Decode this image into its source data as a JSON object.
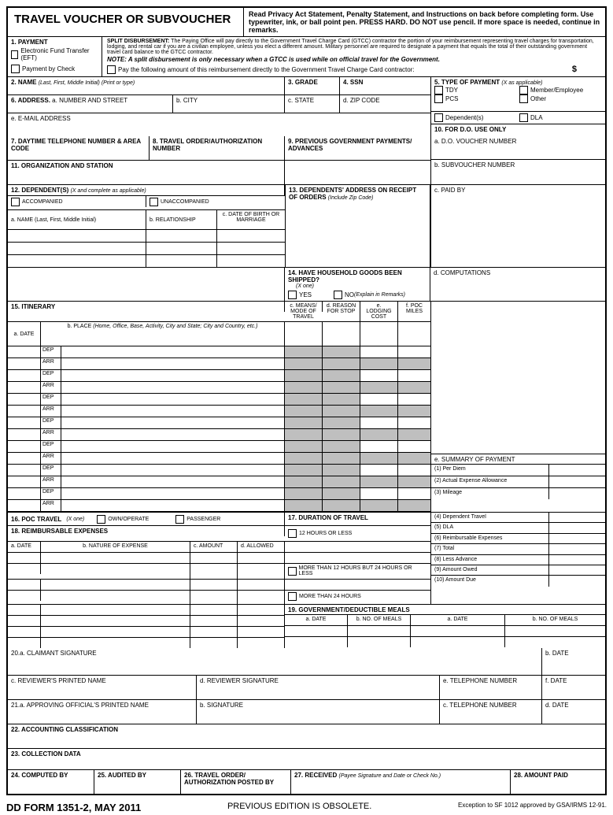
{
  "header": {
    "title": "TRAVEL VOUCHER OR SUBVOUCHER",
    "privacy": "Read Privacy Act Statement, Penalty Statement, and Instructions on back before completing form. Use typewriter, ink, or ball point pen. PRESS HARD. DO NOT use pencil. If more space is needed, continue in remarks."
  },
  "s1": {
    "label": "1. PAYMENT",
    "eft": "Electronic Fund Transfer (EFT)",
    "check": "Payment by Check",
    "split_hdr": "SPLIT DISBURSEMENT:",
    "split_txt": " The Paying Office will pay directly to the Government Travel Charge Card (GTCC) contractor the portion of your reimbursement representing travel charges for transportation, lodging, and rental car if you are a civilian employee, unless you elect a different amount. Military personnel are required to designate a payment that equals the total of their outstanding government travel card balance to the GTCC contractor.",
    "note": "NOTE: A split disbursement is only necessary when a GTCC is used while on official travel for the Government.",
    "pay_following": "Pay the following amount of this reimbursement directly to the Government Travel Charge Card contractor:",
    "dollar": "$"
  },
  "s2": {
    "label": "2. NAME",
    "hint": "(Last, First, Middle Initial) (Print or type)"
  },
  "s3": "3. GRADE",
  "s4": "4. SSN",
  "s5": {
    "label": "5. TYPE OF PAYMENT",
    "hint": "(X as applicable)",
    "tdy": "TDY",
    "member": "Member/Employee",
    "pcs": "PCS",
    "other": "Other",
    "dep": "Dependent(s)",
    "dla": "DLA"
  },
  "s6": {
    "label": "6. ADDRESS.",
    "a": "a. NUMBER AND STREET",
    "b": "b. CITY",
    "c": "c. STATE",
    "d": "d. ZIP CODE",
    "e": "e. E-MAIL ADDRESS"
  },
  "s7": "7. DAYTIME TELEPHONE NUMBER & AREA CODE",
  "s8": "8. TRAVEL ORDER/AUTHORIZATION NUMBER",
  "s9": "9. PREVIOUS GOVERNMENT PAYMENTS/ ADVANCES",
  "s10": {
    "label": "10. FOR D.O. USE ONLY",
    "a": "a. D.O. VOUCHER NUMBER",
    "b": "b. SUBVOUCHER NUMBER",
    "c": "c. PAID BY",
    "d": "d. COMPUTATIONS",
    "e": "e. SUMMARY OF PAYMENT",
    "lines": [
      "(1) Per Diem",
      "(2) Actual Expense Allowance",
      "(3) Mileage",
      "(4) Dependent Travel",
      "(5) DLA",
      "(6) Reimbursable Expenses",
      "(7) Total",
      "(8) Less Advance",
      "(9) Amount Owed",
      "(10) Amount Due"
    ]
  },
  "s11": "11. ORGANIZATION AND STATION",
  "s12": {
    "label": "12. DEPENDENT(S)",
    "hint": "(X and complete as applicable)",
    "acc": "ACCOMPANIED",
    "unacc": "UNACCOMPANIED",
    "a": "a. NAME (Last, First, Middle Initial)",
    "b": "b. RELATIONSHIP",
    "c": "c. DATE OF BIRTH OR MARRIAGE"
  },
  "s13": {
    "label": "13. DEPENDENTS' ADDRESS ON RECEIPT OF ORDERS",
    "hint": "(Include Zip Code)"
  },
  "s14": {
    "label": "14. HAVE HOUSEHOLD GOODS BEEN SHIPPED?",
    "hint": "(X one)",
    "yes": "YES",
    "no": "NO",
    "no_hint": "(Explain in Remarks)"
  },
  "s15": {
    "label": "15. ITINERARY",
    "a": "a. DATE",
    "b": "b. PLACE",
    "b_hint": "(Home, Office, Base, Activity, City and State; City and Country, etc.)",
    "c": "c. MEANS/ MODE OF TRAVEL",
    "d": "d. REASON FOR STOP",
    "e": "e. LODGING COST",
    "f": "f. POC MILES",
    "dep": "DEP",
    "arr": "ARR"
  },
  "s16": {
    "label": "16. POC TRAVEL",
    "hint": "(X one)",
    "own": "OWN/OPERATE",
    "pass": "PASSENGER"
  },
  "s17": {
    "label": "17. DURATION OF TRAVEL",
    "a": "12 HOURS OR LESS",
    "b": "MORE THAN 12 HOURS BUT 24 HOURS OR LESS",
    "c": "MORE THAN 24 HOURS"
  },
  "s18": {
    "label": "18. REIMBURSABLE EXPENSES",
    "a": "a. DATE",
    "b": "b. NATURE OF EXPENSE",
    "c": "c. AMOUNT",
    "d": "d. ALLOWED"
  },
  "s19": {
    "label": "19. GOVERNMENT/DEDUCTIBLE MEALS",
    "date": "a. DATE",
    "meals": "b. NO. OF MEALS"
  },
  "s20": {
    "a": "20.a. CLAIMANT SIGNATURE",
    "b": "b. DATE",
    "c": "c. REVIEWER'S PRINTED NAME",
    "d": "d. REVIEWER SIGNATURE",
    "e": "e. TELEPHONE NUMBER",
    "f": "f. DATE"
  },
  "s21": {
    "a": "21.a. APPROVING OFFICIAL'S PRINTED NAME",
    "b": "b. SIGNATURE",
    "c": "c. TELEPHONE NUMBER",
    "d": "d. DATE"
  },
  "s22": "22. ACCOUNTING CLASSIFICATION",
  "s23": "23. COLLECTION DATA",
  "s24": "24. COMPUTED BY",
  "s25": "25. AUDITED BY",
  "s26": "26. TRAVEL ORDER/ AUTHORIZATION POSTED BY",
  "s27": {
    "label": "27. RECEIVED",
    "hint": "(Payee Signature and Date or Check No.)"
  },
  "s28": "28. AMOUNT PAID",
  "footer": {
    "form": "DD FORM 1351-2, MAY 2011",
    "obsolete": "PREVIOUS EDITION IS OBSOLETE.",
    "exception": "Exception to SF 1012 approved by GSA/IRMS 12-91."
  }
}
